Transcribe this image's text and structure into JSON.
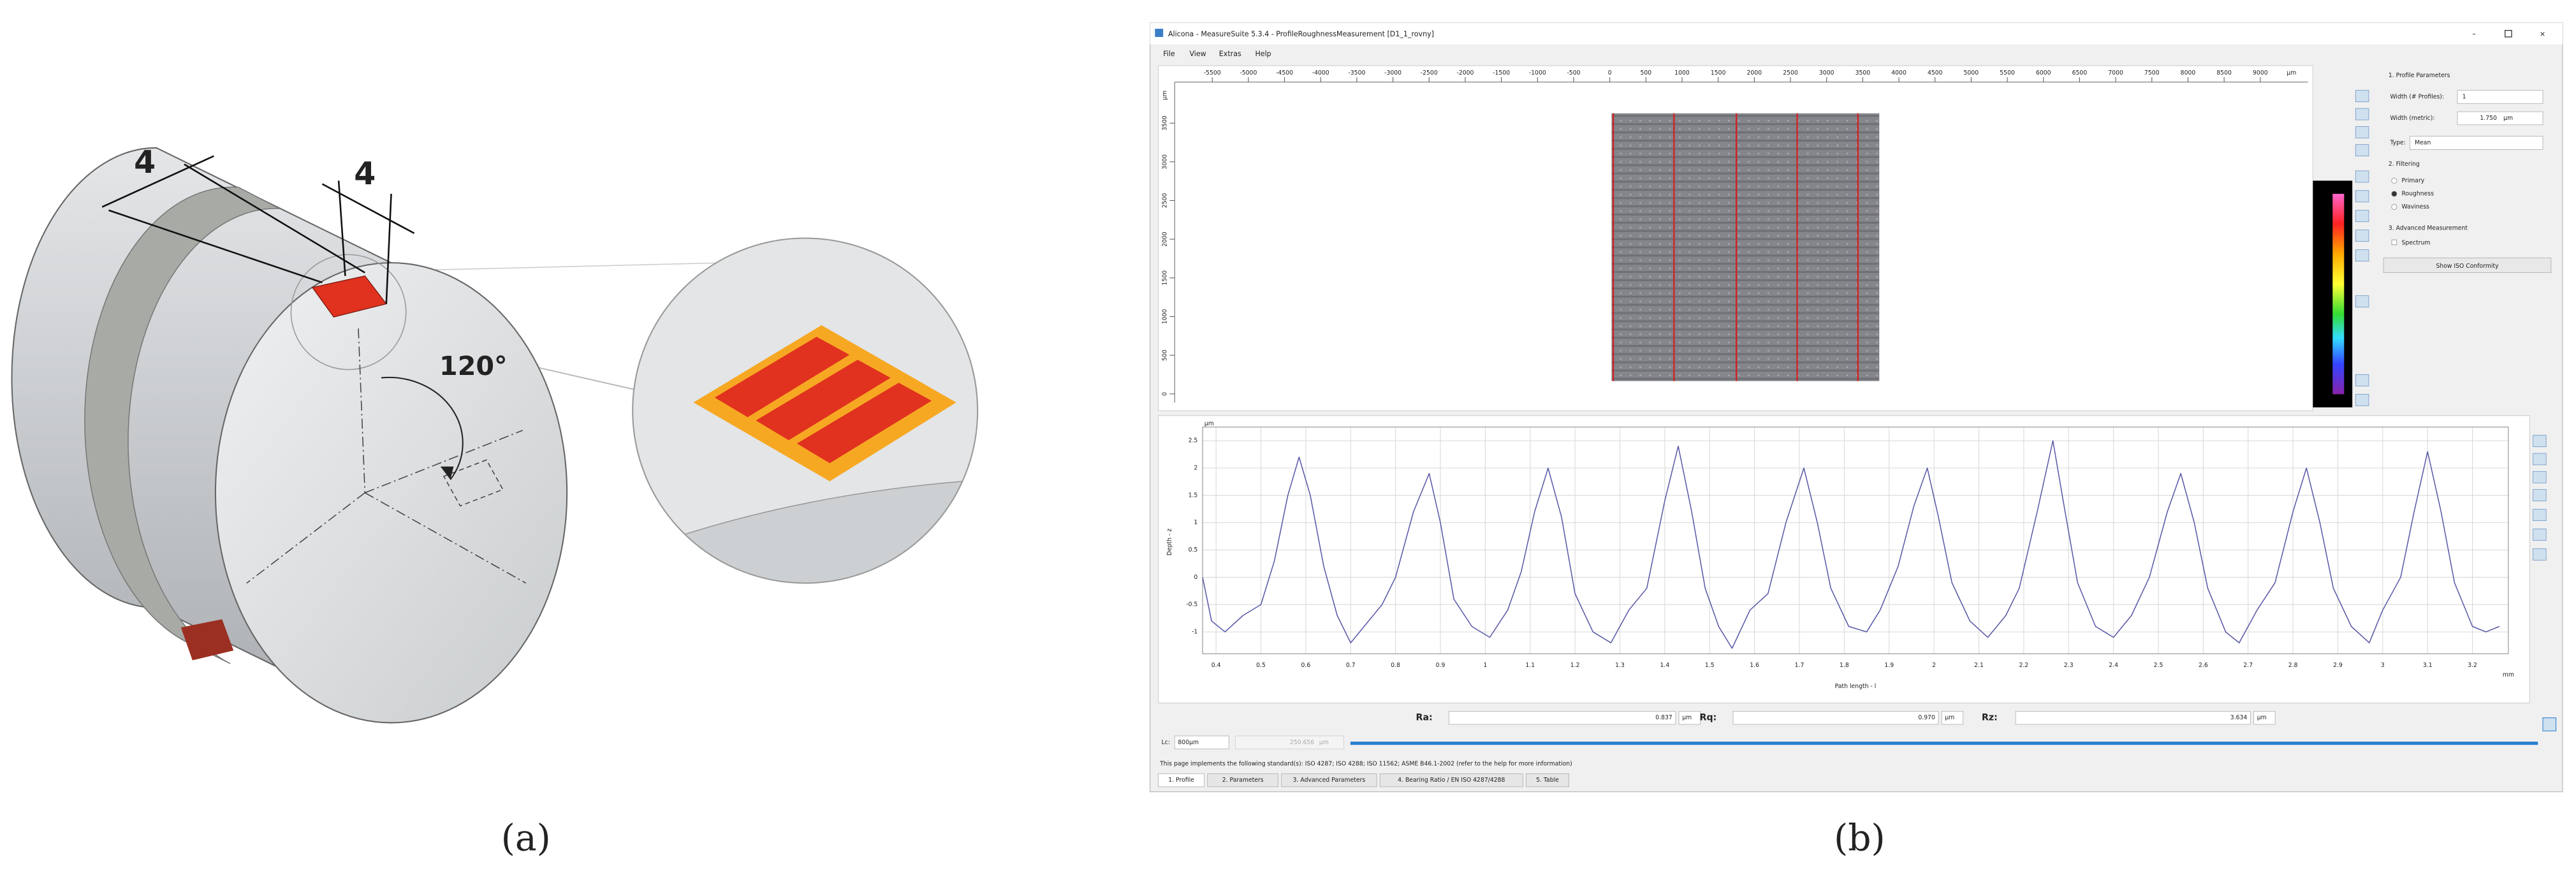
{
  "panel_a": {
    "label": "(a)",
    "dim_left": "4",
    "dim_right": "4",
    "angle": "120°"
  },
  "panel_b": {
    "label": "(b)",
    "window_title": "Alicona - MeasureSuite 5.3.4 - ProfileRoughnessMeasurement [D1_1_rovny]",
    "menu": [
      "File",
      "View",
      "Extras",
      "Help"
    ],
    "image_view": {
      "x_unit": "µm",
      "xlim": [
        -6020,
        9660
      ],
      "xticks": [
        -5500,
        -5000,
        -4500,
        -4000,
        -3500,
        -3000,
        -2500,
        -2000,
        -1500,
        -1000,
        -500,
        0,
        500,
        1000,
        1500,
        2000,
        2500,
        3000,
        3500,
        4000,
        4500,
        5000,
        5500,
        6000,
        6500,
        7000,
        7500,
        8000,
        8500,
        9000
      ],
      "y_unit": "µm",
      "ylim": [
        -110,
        4030
      ],
      "yticks": [
        0,
        500,
        1000,
        1500,
        2000,
        2500,
        3000,
        3500
      ]
    },
    "side_panel": {
      "profile_parameters": "1. Profile Parameters",
      "width_profiles_label": "Width (# Profiles):",
      "width_profiles": "1",
      "width_metric_label": "Width (metric):",
      "width_metric": "1.750",
      "width_metric_unit": "µm",
      "type_label": "Type:",
      "type": "Mean",
      "filtering": "2. Filtering",
      "filters": [
        "Primary",
        "Roughness",
        "Waviness"
      ],
      "advanced": "3. Advanced Measurement",
      "spectrum": "Spectrum",
      "iso_button": "Show ISO Conformity"
    },
    "results": [
      {
        "label": "Ra:",
        "value": "0.837",
        "unit": "µm"
      },
      {
        "label": "Rq:",
        "value": "0.970",
        "unit": "µm"
      },
      {
        "label": "Rz:",
        "value": "3.634",
        "unit": "µm"
      }
    ],
    "lc": {
      "label": "Lc:",
      "value": "800µm",
      "length": "250.656",
      "length_unit": "µm"
    },
    "standards": "This page implements the following standard(s): ISO 4287; ISO 4288; ISO 11562; ASME B46.1-2002 (refer to the help for more information)",
    "tabs": [
      "1. Profile",
      "2. Parameters",
      "3. Advanced Parameters",
      "4. Bearing Ratio / EN ISO 4287/4288",
      "5. Table"
    ]
  },
  "chart_data": {
    "type": "line",
    "xlabel": "Path length - l",
    "ylabel": "Depth - z",
    "x_unit": "mm",
    "y_unit": "µm",
    "color": "#5a5aa8",
    "grid": true,
    "x": [
      0.37,
      0.39,
      0.42,
      0.46,
      0.5,
      0.53,
      0.56,
      0.585,
      0.61,
      0.64,
      0.67,
      0.7,
      0.73,
      0.77,
      0.8,
      0.84,
      0.875,
      0.9,
      0.93,
      0.97,
      1.01,
      1.05,
      1.08,
      1.11,
      1.14,
      1.17,
      1.2,
      1.24,
      1.28,
      1.32,
      1.36,
      1.4,
      1.43,
      1.46,
      1.49,
      1.52,
      1.55,
      1.59,
      1.63,
      1.67,
      1.71,
      1.74,
      1.77,
      1.81,
      1.85,
      1.88,
      1.92,
      1.955,
      1.985,
      2.01,
      2.04,
      2.08,
      2.12,
      2.16,
      2.19,
      2.23,
      2.265,
      2.29,
      2.32,
      2.36,
      2.4,
      2.44,
      2.48,
      2.52,
      2.55,
      2.58,
      2.61,
      2.65,
      2.68,
      2.72,
      2.76,
      2.8,
      2.83,
      2.86,
      2.89,
      2.93,
      2.97,
      3.0,
      3.04,
      3.07,
      3.1,
      3.13,
      3.16,
      3.2,
      3.23,
      3.26
    ],
    "values": [
      0.0,
      -0.8,
      -1.0,
      -0.7,
      -0.5,
      0.3,
      1.5,
      2.2,
      1.5,
      0.2,
      -0.7,
      -1.2,
      -0.9,
      -0.5,
      0.0,
      1.2,
      1.9,
      1.0,
      -0.4,
      -0.9,
      -1.1,
      -0.6,
      0.1,
      1.2,
      2.0,
      1.1,
      -0.3,
      -1.0,
      -1.2,
      -0.6,
      -0.2,
      1.4,
      2.4,
      1.2,
      -0.2,
      -0.9,
      -1.3,
      -0.6,
      -0.3,
      1.0,
      2.0,
      1.0,
      -0.2,
      -0.9,
      -1.0,
      -0.6,
      0.2,
      1.3,
      2.0,
      1.1,
      -0.1,
      -0.8,
      -1.1,
      -0.7,
      -0.2,
      1.2,
      2.5,
      1.3,
      -0.1,
      -0.9,
      -1.1,
      -0.7,
      0.0,
      1.2,
      1.9,
      1.0,
      -0.2,
      -1.0,
      -1.2,
      -0.6,
      -0.1,
      1.2,
      2.0,
      1.0,
      -0.2,
      -0.9,
      -1.2,
      -0.6,
      0.0,
      1.2,
      2.3,
      1.2,
      -0.1,
      -0.9,
      -1.0,
      -0.9
    ],
    "xlim": [
      0.37,
      3.28
    ],
    "ylim": [
      -1.4,
      2.75
    ],
    "xticks": [
      0.4,
      0.5,
      0.6,
      0.7,
      0.8,
      0.9,
      1,
      1.1,
      1.2,
      1.3,
      1.4,
      1.5,
      1.6,
      1.7,
      1.8,
      1.9,
      2,
      2.1,
      2.2,
      2.3,
      2.4,
      2.5,
      2.6,
      2.7,
      2.8,
      2.9,
      3,
      3.1,
      3.2
    ],
    "yticks": [
      -1,
      -0.5,
      0,
      0.5,
      1,
      1.5,
      2,
      2.5
    ]
  }
}
